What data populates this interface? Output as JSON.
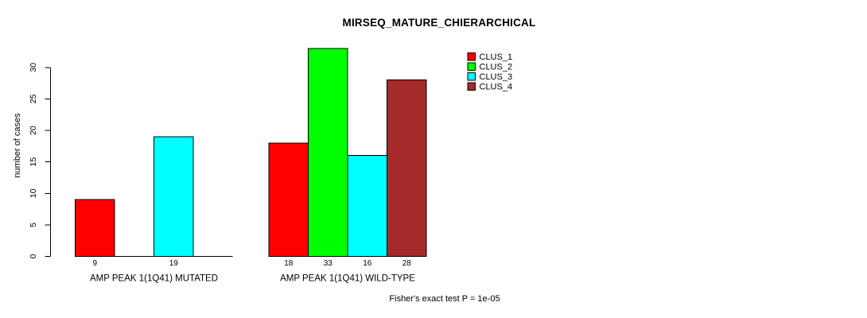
{
  "chart_data": {
    "type": "bar",
    "title": "MIRSEQ_MATURE_CHIERARCHICAL",
    "ylabel": "number of cases",
    "xlabel": "",
    "categories": [
      "AMP PEAK 1(1Q41) MUTATED",
      "AMP PEAK 1(1Q41) WILD-TYPE"
    ],
    "series": [
      {
        "name": "CLUS_1",
        "color": "#FF0000",
        "values": [
          9,
          18
        ]
      },
      {
        "name": "CLUS_2",
        "color": "#00FF00",
        "values": [
          null,
          33
        ]
      },
      {
        "name": "CLUS_3",
        "color": "#00FFFF",
        "values": [
          19,
          16
        ]
      },
      {
        "name": "CLUS_4",
        "color": "#A52A2A",
        "values": [
          null,
          28
        ]
      }
    ],
    "bar_value_labels": {
      "AMP PEAK 1(1Q41) MUTATED": [
        "9",
        "19"
      ],
      "AMP PEAK 1(1Q41) WILD-TYPE": [
        "18",
        "33",
        "16",
        "28"
      ]
    },
    "y_ticks": [
      0,
      5,
      10,
      15,
      20,
      25,
      30
    ],
    "ylim": [
      0,
      33
    ],
    "grid": false,
    "legend_position": "top-right",
    "legend_items": [
      "CLUS_1",
      "CLUS_2",
      "CLUS_3",
      "CLUS_4"
    ],
    "annotation": "Fisher's exact test P = 1e-05",
    "bar_border_color": "#000000",
    "background_color": "#FFFFFF"
  }
}
